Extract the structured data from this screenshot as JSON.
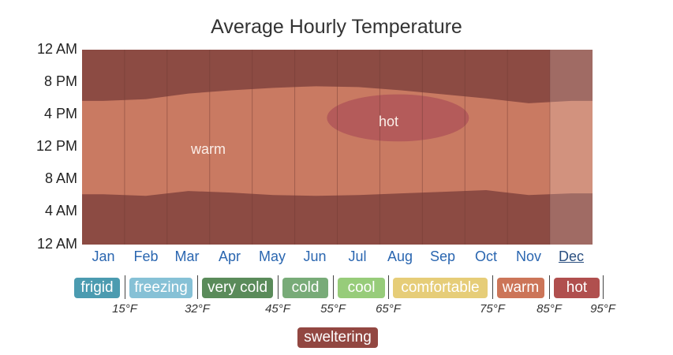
{
  "chart_data": {
    "type": "heatmap",
    "title": "Average Hourly Temperature",
    "y_ticks": [
      "12 AM",
      "8 PM",
      "4 PM",
      "12 PM",
      "8 AM",
      "4 AM",
      "12 AM"
    ],
    "months": [
      "Jan",
      "Feb",
      "Mar",
      "Apr",
      "May",
      "Jun",
      "Jul",
      "Aug",
      "Sep",
      "Oct",
      "Nov",
      "Dec"
    ],
    "current_month": "Dec",
    "warm_band": [
      {
        "month": "Jan",
        "start_hour": 6.2,
        "end_hour": 17.7
      },
      {
        "month": "Feb",
        "start_hour": 6.0,
        "end_hour": 17.9
      },
      {
        "month": "Mar",
        "start_hour": 6.6,
        "end_hour": 18.6
      },
      {
        "month": "Apr",
        "start_hour": 6.4,
        "end_hour": 19.0
      },
      {
        "month": "May",
        "start_hour": 6.1,
        "end_hour": 19.3
      },
      {
        "month": "Jun",
        "start_hour": 6.0,
        "end_hour": 19.5
      },
      {
        "month": "Jul",
        "start_hour": 6.1,
        "end_hour": 19.4
      },
      {
        "month": "Aug",
        "start_hour": 6.3,
        "end_hour": 19.0
      },
      {
        "month": "Sep",
        "start_hour": 6.5,
        "end_hour": 18.5
      },
      {
        "month": "Oct",
        "start_hour": 6.7,
        "end_hour": 18.0
      },
      {
        "month": "Nov",
        "start_hour": 6.1,
        "end_hour": 17.4
      },
      {
        "month": "Dec",
        "start_hour": 6.3,
        "end_hour": 17.7
      }
    ],
    "hot_region": {
      "label": "hot",
      "start_hour": 12.7,
      "end_hour": 18.5,
      "center_month": "Aug"
    },
    "labels": {
      "warm": "warm",
      "hot": "hot"
    },
    "colors": {
      "hot": "#8c4b43",
      "warm": "#c97a62",
      "hot_region": "#b45b5a",
      "grid": "#6e3a33"
    }
  },
  "legend": {
    "categories": [
      {
        "label": "frigid",
        "color": "#4b9bb0"
      },
      {
        "label": "freezing",
        "color": "#86c1d6"
      },
      {
        "label": "very cold",
        "color": "#5a8b5a"
      },
      {
        "label": "cold",
        "color": "#78ab78"
      },
      {
        "label": "cool",
        "color": "#97cc7a"
      },
      {
        "label": "comfortable",
        "color": "#e6cd78"
      },
      {
        "label": "warm",
        "color": "#cc7558"
      },
      {
        "label": "hot",
        "color": "#b04f4e"
      },
      {
        "label": "sweltering",
        "color": "#924741"
      }
    ],
    "temps": [
      "15°F",
      "32°F",
      "45°F",
      "55°F",
      "65°F",
      "75°F",
      "85°F",
      "95°F"
    ]
  }
}
